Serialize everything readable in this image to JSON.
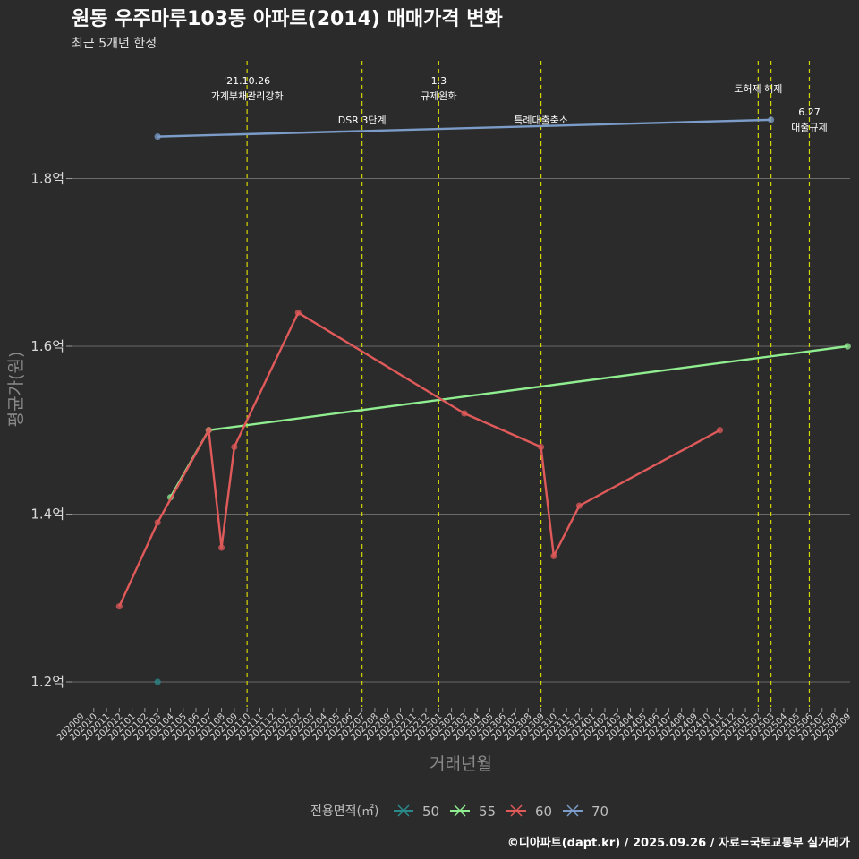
{
  "header": {
    "title": "원동 우주마루103동 아파트(2014) 매매가격 변화",
    "subtitle": "최근 5개년 한정",
    "caption": "©디아파트(dapt.kr) / 2025.09.26 / 자료=국토교통부 실거래가"
  },
  "chart_data": {
    "type": "line",
    "xlabel": "거래년월",
    "ylabel": "평균가(원)",
    "ylim": [
      1.17,
      1.91
    ],
    "y_ticks": [
      {
        "value": 1.2,
        "label": "1.2억"
      },
      {
        "value": 1.4,
        "label": "1.4억"
      },
      {
        "value": 1.6,
        "label": "1.6억"
      },
      {
        "value": 1.8,
        "label": "1.8억"
      }
    ],
    "categories": [
      "202009",
      "202010",
      "202011",
      "202012",
      "202101",
      "202102",
      "202103",
      "202104",
      "202105",
      "202106",
      "202107",
      "202108",
      "202109",
      "202110",
      "202111",
      "202112",
      "202201",
      "202202",
      "202203",
      "202204",
      "202205",
      "202206",
      "202207",
      "202208",
      "202209",
      "202210",
      "202211",
      "202212",
      "202301",
      "202302",
      "202303",
      "202304",
      "202305",
      "202306",
      "202307",
      "202308",
      "202309",
      "202310",
      "202311",
      "202312",
      "202401",
      "202402",
      "202403",
      "202404",
      "202405",
      "202406",
      "202407",
      "202408",
      "202409",
      "202410",
      "202411",
      "202412",
      "202501",
      "202502",
      "202503",
      "202504",
      "202505",
      "202506",
      "202507",
      "202508",
      "202509"
    ],
    "legend": {
      "title": "전용면적(㎡)",
      "position": "bottom"
    },
    "grid": true,
    "series": [
      {
        "name": "50",
        "color": "#2a8a8a",
        "points": [
          {
            "x": "202103",
            "y": 1.2
          }
        ]
      },
      {
        "name": "55",
        "color": "#90ee90",
        "points": [
          {
            "x": "202104",
            "y": 1.42
          },
          {
            "x": "202107",
            "y": 1.5
          },
          {
            "x": "202509",
            "y": 1.6
          }
        ]
      },
      {
        "name": "60",
        "color": "#e05a5a",
        "points": [
          {
            "x": "202012",
            "y": 1.29
          },
          {
            "x": "202103",
            "y": 1.39
          },
          {
            "x": "202107",
            "y": 1.5
          },
          {
            "x": "202108",
            "y": 1.36
          },
          {
            "x": "202109",
            "y": 1.48
          },
          {
            "x": "202202",
            "y": 1.64
          },
          {
            "x": "202303",
            "y": 1.52
          },
          {
            "x": "202309",
            "y": 1.48
          },
          {
            "x": "202310",
            "y": 1.35
          },
          {
            "x": "202312",
            "y": 1.41
          },
          {
            "x": "202411",
            "y": 1.5
          }
        ]
      },
      {
        "name": "70",
        "color": "#7b9cc8",
        "points": [
          {
            "x": "202103",
            "y": 1.85
          },
          {
            "x": "202503",
            "y": 1.87
          }
        ]
      }
    ],
    "events": [
      {
        "x": "202110",
        "lines": [
          "'21.10.26",
          "가계부채관리강화"
        ],
        "row": "top"
      },
      {
        "x": "202207",
        "lines": [
          "DSR 3단계"
        ],
        "row": "mid"
      },
      {
        "x": "202301",
        "lines": [
          "1.3",
          "규제완화"
        ],
        "row": "top"
      },
      {
        "x": "202309",
        "lines": [
          "특례대출축소"
        ],
        "row": "mid"
      },
      {
        "x": "202502",
        "lines": [
          "토허제 해제"
        ],
        "row": "top2"
      },
      {
        "x": "202503",
        "lines": [],
        "row": "none"
      },
      {
        "x": "202506",
        "lines": [
          "6.27",
          "대출규제"
        ],
        "row": "right"
      }
    ]
  }
}
